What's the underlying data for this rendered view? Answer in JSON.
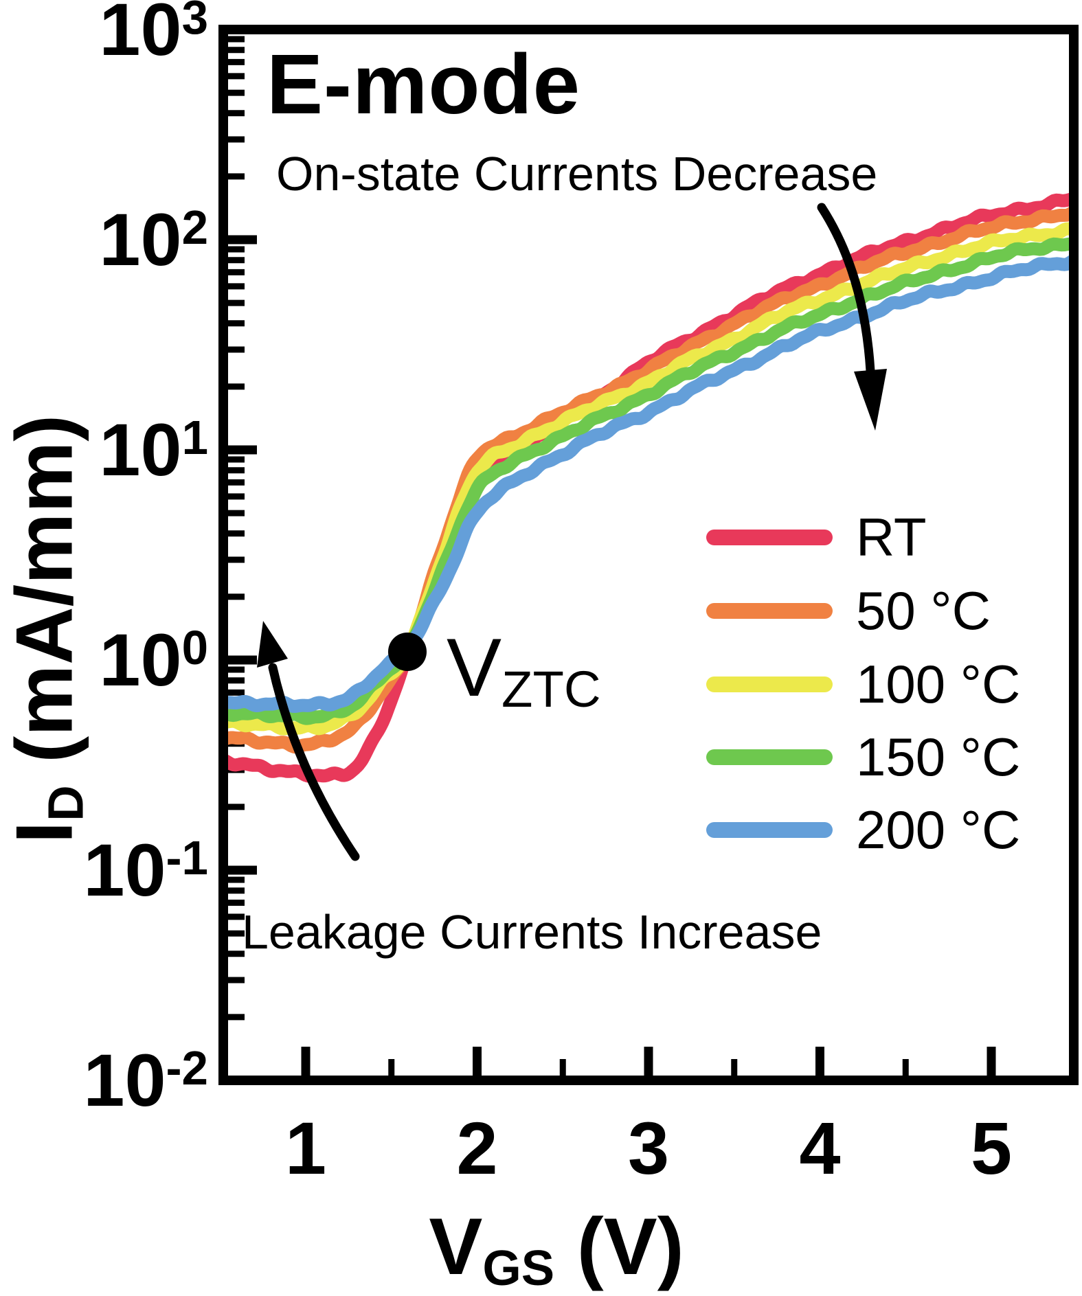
{
  "figure_title": "E-mode",
  "annotations": {
    "on_state": "On-state Currents Decrease",
    "leakage": "Leakage Currents Increase",
    "vztc_main": "V",
    "vztc_sub": "ZTC"
  },
  "x_axis": {
    "label_main": "V",
    "label_sub": "GS",
    "label_unit": " (V)",
    "major_ticks": [
      1,
      2,
      3,
      4,
      5
    ],
    "minor_ticks": [
      1.5,
      2.5,
      3.5,
      4.5
    ]
  },
  "y_axis": {
    "base": "10",
    "tick_exponents": [
      3,
      2,
      1,
      0,
      -1,
      -2
    ]
  },
  "legend": [
    {
      "label": "RT",
      "color": "#e8395a"
    },
    {
      "label": "50 °C",
      "color": "#f08142"
    },
    {
      "label": "100 °C",
      "color": "#ece94b"
    },
    {
      "label": "150 °C",
      "color": "#6ec84e"
    },
    {
      "label": "200 °C",
      "color": "#649fd9"
    }
  ],
  "chart_data": {
    "type": "line",
    "log_y": true,
    "title": "E-mode",
    "xlabel": "V_GS (V)",
    "ylabel": "I_D (mA/mm)",
    "xlim": [
      0.52,
      5.48
    ],
    "ylim": [
      0.01,
      1000
    ],
    "grid": false,
    "legend_position": "center-right",
    "ztc_point": {
      "x": 1.6,
      "y": 1.1,
      "label": "V_ZTC"
    },
    "x": [
      0.5,
      0.7,
      0.85,
      1.0,
      1.15,
      1.3,
      1.45,
      1.6,
      1.8,
      2.0,
      2.25,
      2.5,
      2.75,
      3.0,
      3.25,
      3.5,
      3.75,
      4.0,
      4.25,
      4.5,
      4.75,
      5.0,
      5.25,
      5.48
    ],
    "series": [
      {
        "name": "RT",
        "color": "#e8395a",
        "values": [
          0.33,
          0.31,
          0.3,
          0.29,
          0.28,
          0.31,
          0.52,
          1.1,
          2.8,
          6.8,
          10.2,
          13.8,
          18.8,
          26,
          34,
          44,
          56,
          69,
          83,
          98,
          114,
          130,
          144,
          156
        ]
      },
      {
        "name": "50 °C",
        "color": "#f08142",
        "values": [
          0.43,
          0.41,
          0.4,
          0.4,
          0.42,
          0.49,
          0.72,
          1.12,
          3.4,
          9.0,
          12.0,
          15.0,
          19.0,
          24,
          31,
          40,
          50,
          61,
          74,
          87,
          101,
          114,
          126,
          135
        ]
      },
      {
        "name": "100 °C",
        "color": "#ece94b",
        "values": [
          0.51,
          0.49,
          0.48,
          0.48,
          0.5,
          0.57,
          0.79,
          1.13,
          3.1,
          7.8,
          10.8,
          13.5,
          17.0,
          21,
          27,
          34,
          43,
          52,
          62,
          73,
          85,
          96,
          105,
          112
        ]
      },
      {
        "name": "150 °C",
        "color": "#6ec84e",
        "values": [
          0.57,
          0.55,
          0.54,
          0.54,
          0.56,
          0.63,
          0.84,
          1.14,
          2.7,
          6.4,
          9.2,
          11.6,
          14.6,
          18.5,
          23.5,
          29.5,
          36.5,
          44,
          53,
          62,
          72,
          82,
          91,
          97
        ]
      },
      {
        "name": "200 °C",
        "color": "#649fd9",
        "values": [
          0.64,
          0.62,
          0.61,
          0.61,
          0.63,
          0.7,
          0.9,
          1.15,
          2.3,
          5.0,
          7.4,
          9.6,
          12.2,
          15.2,
          19.2,
          24,
          30,
          36.5,
          43.5,
          51,
          58.5,
          66,
          74,
          80
        ]
      }
    ]
  }
}
